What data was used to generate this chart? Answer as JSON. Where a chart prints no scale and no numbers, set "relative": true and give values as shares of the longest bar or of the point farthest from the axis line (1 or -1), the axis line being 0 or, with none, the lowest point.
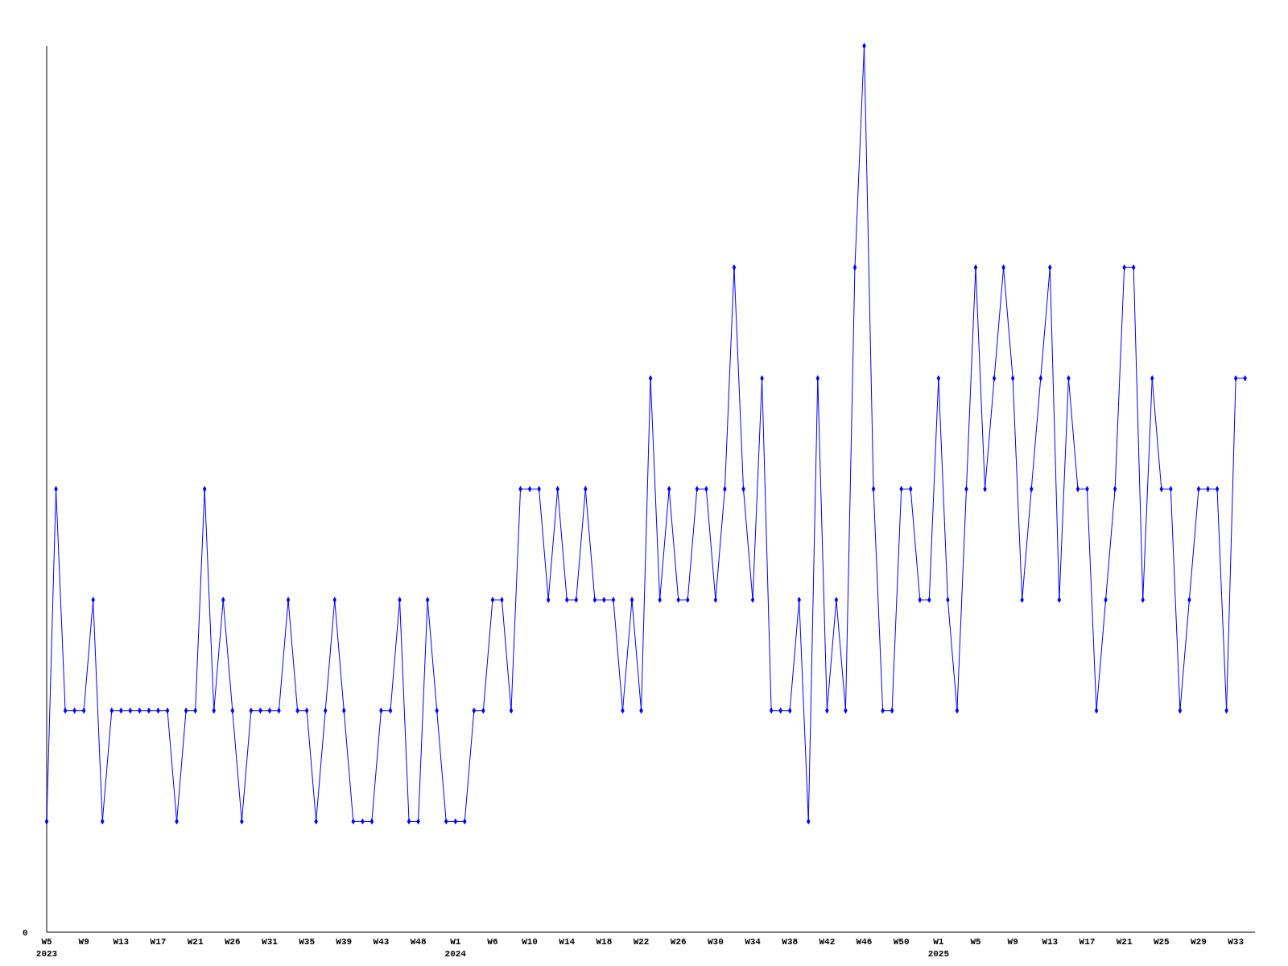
{
  "chart_data": {
    "type": "line",
    "relative": true,
    "marker": "diamond",
    "line_style": "solid",
    "annotations": [
      "0"
    ],
    "categories": [
      "W5\n2023",
      null,
      null,
      null,
      "W9",
      null,
      null,
      null,
      "W13",
      null,
      null,
      null,
      "W17",
      null,
      null,
      null,
      "W21",
      null,
      null,
      null,
      "W26",
      null,
      null,
      null,
      "W31",
      null,
      null,
      null,
      "W35",
      null,
      null,
      null,
      "W39",
      null,
      null,
      null,
      "W43",
      null,
      null,
      null,
      "W48",
      null,
      null,
      null,
      "W1\n2024",
      null,
      null,
      null,
      "W6",
      null,
      null,
      null,
      "W10",
      null,
      null,
      null,
      "W14",
      null,
      null,
      null,
      "W18",
      null,
      null,
      null,
      "W22",
      null,
      null,
      null,
      "W26",
      null,
      null,
      null,
      "W30",
      null,
      null,
      null,
      "W34",
      null,
      null,
      null,
      "W38",
      null,
      null,
      null,
      "W42",
      null,
      null,
      null,
      "W46",
      null,
      null,
      null,
      "W50",
      null,
      null,
      null,
      "W1\n2025",
      null,
      null,
      null,
      "W5",
      null,
      null,
      null,
      "W9",
      null,
      null,
      null,
      "W13",
      null,
      null,
      null,
      "W17",
      null,
      null,
      null,
      "W21",
      null,
      null,
      null,
      "W25",
      null,
      null,
      null,
      "W29",
      null,
      null,
      null,
      "W33",
      null
    ],
    "series": [
      {
        "color": "#0000ff",
        "values": [
          0.125,
          0.5,
          0.25,
          0.25,
          0.25,
          0.375,
          0.125,
          0.25,
          0.25,
          0.25,
          0.25,
          0.25,
          0.25,
          0.25,
          0.125,
          0.25,
          0.25,
          0.5,
          0.25,
          0.375,
          0.25,
          0.125,
          0.25,
          0.25,
          0.25,
          0.25,
          0.375,
          0.25,
          0.25,
          0.125,
          0.25,
          0.375,
          0.25,
          0.125,
          0.125,
          0.125,
          0.25,
          0.25,
          0.375,
          0.125,
          0.125,
          0.375,
          0.25,
          0.125,
          0.125,
          0.125,
          0.25,
          0.25,
          0.375,
          0.375,
          0.25,
          0.5,
          0.5,
          0.5,
          0.375,
          0.5,
          0.375,
          0.375,
          0.5,
          0.375,
          0.375,
          0.375,
          0.25,
          0.375,
          0.25,
          0.625,
          0.375,
          0.5,
          0.375,
          0.375,
          0.5,
          0.5,
          0.375,
          0.5,
          0.75,
          0.5,
          0.375,
          0.625,
          0.25,
          0.25,
          0.25,
          0.375,
          0.125,
          0.625,
          0.25,
          0.375,
          0.25,
          0.75,
          1,
          0.5,
          0.25,
          0.25,
          0.5,
          0.5,
          0.375,
          0.375,
          0.625,
          0.375,
          0.25,
          0.5,
          0.75,
          0.5,
          0.625,
          0.75,
          0.625,
          0.375,
          0.5,
          0.625,
          0.75,
          0.375,
          0.625,
          0.5,
          0.5,
          0.25,
          0.375,
          0.5,
          0.75,
          0.75,
          0.375,
          0.625,
          0.5,
          0.5,
          0.25,
          0.375,
          0.5,
          0.5,
          0.5,
          0.25,
          0.625,
          0.625
        ]
      }
    ]
  }
}
